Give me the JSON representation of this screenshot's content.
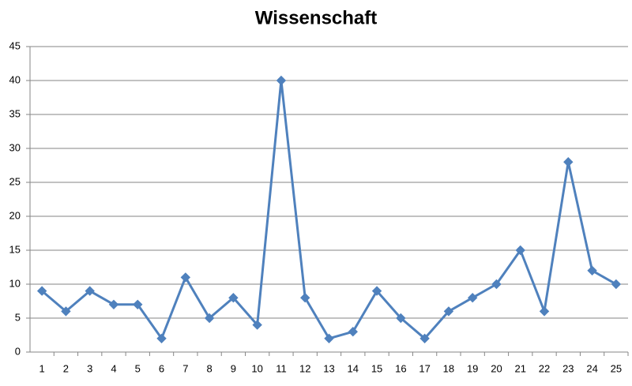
{
  "chart_data": {
    "type": "line",
    "title": "Wissenschaft",
    "categories": [
      "1",
      "2",
      "3",
      "4",
      "5",
      "6",
      "7",
      "8",
      "9",
      "10",
      "11",
      "12",
      "13",
      "14",
      "15",
      "16",
      "17",
      "18",
      "19",
      "20",
      "21",
      "22",
      "23",
      "24",
      "25"
    ],
    "values": [
      9,
      6,
      9,
      7,
      7,
      2,
      11,
      5,
      8,
      4,
      40,
      8,
      2,
      3,
      9,
      5,
      2,
      6,
      8,
      10,
      15,
      6,
      28,
      12,
      10
    ],
    "color": "#4f81bd",
    "ylim": [
      0,
      45
    ],
    "yticks": [
      0,
      5,
      10,
      15,
      20,
      25,
      30,
      35,
      40,
      45
    ],
    "grid": true
  }
}
